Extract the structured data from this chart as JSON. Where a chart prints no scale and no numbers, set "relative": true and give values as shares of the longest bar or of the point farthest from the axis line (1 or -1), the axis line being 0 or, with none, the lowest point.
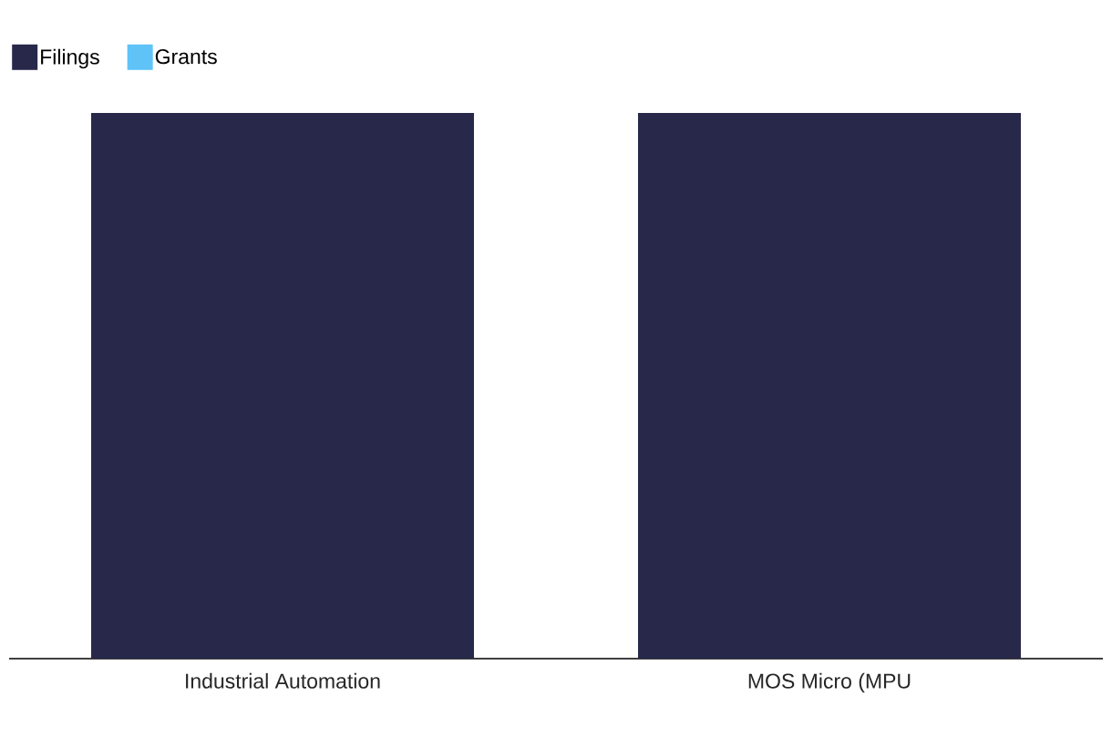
{
  "chart_data": {
    "type": "bar",
    "relative": true,
    "categories": [
      "Industrial Automation",
      "MOS Micro (MPU"
    ],
    "series": [
      {
        "name": "Filings",
        "color": "#28284a",
        "values": [
          1,
          1
        ]
      },
      {
        "name": "Grants",
        "color": "#5fc3f8",
        "values": [
          null,
          null
        ]
      }
    ],
    "legend": "top left"
  }
}
